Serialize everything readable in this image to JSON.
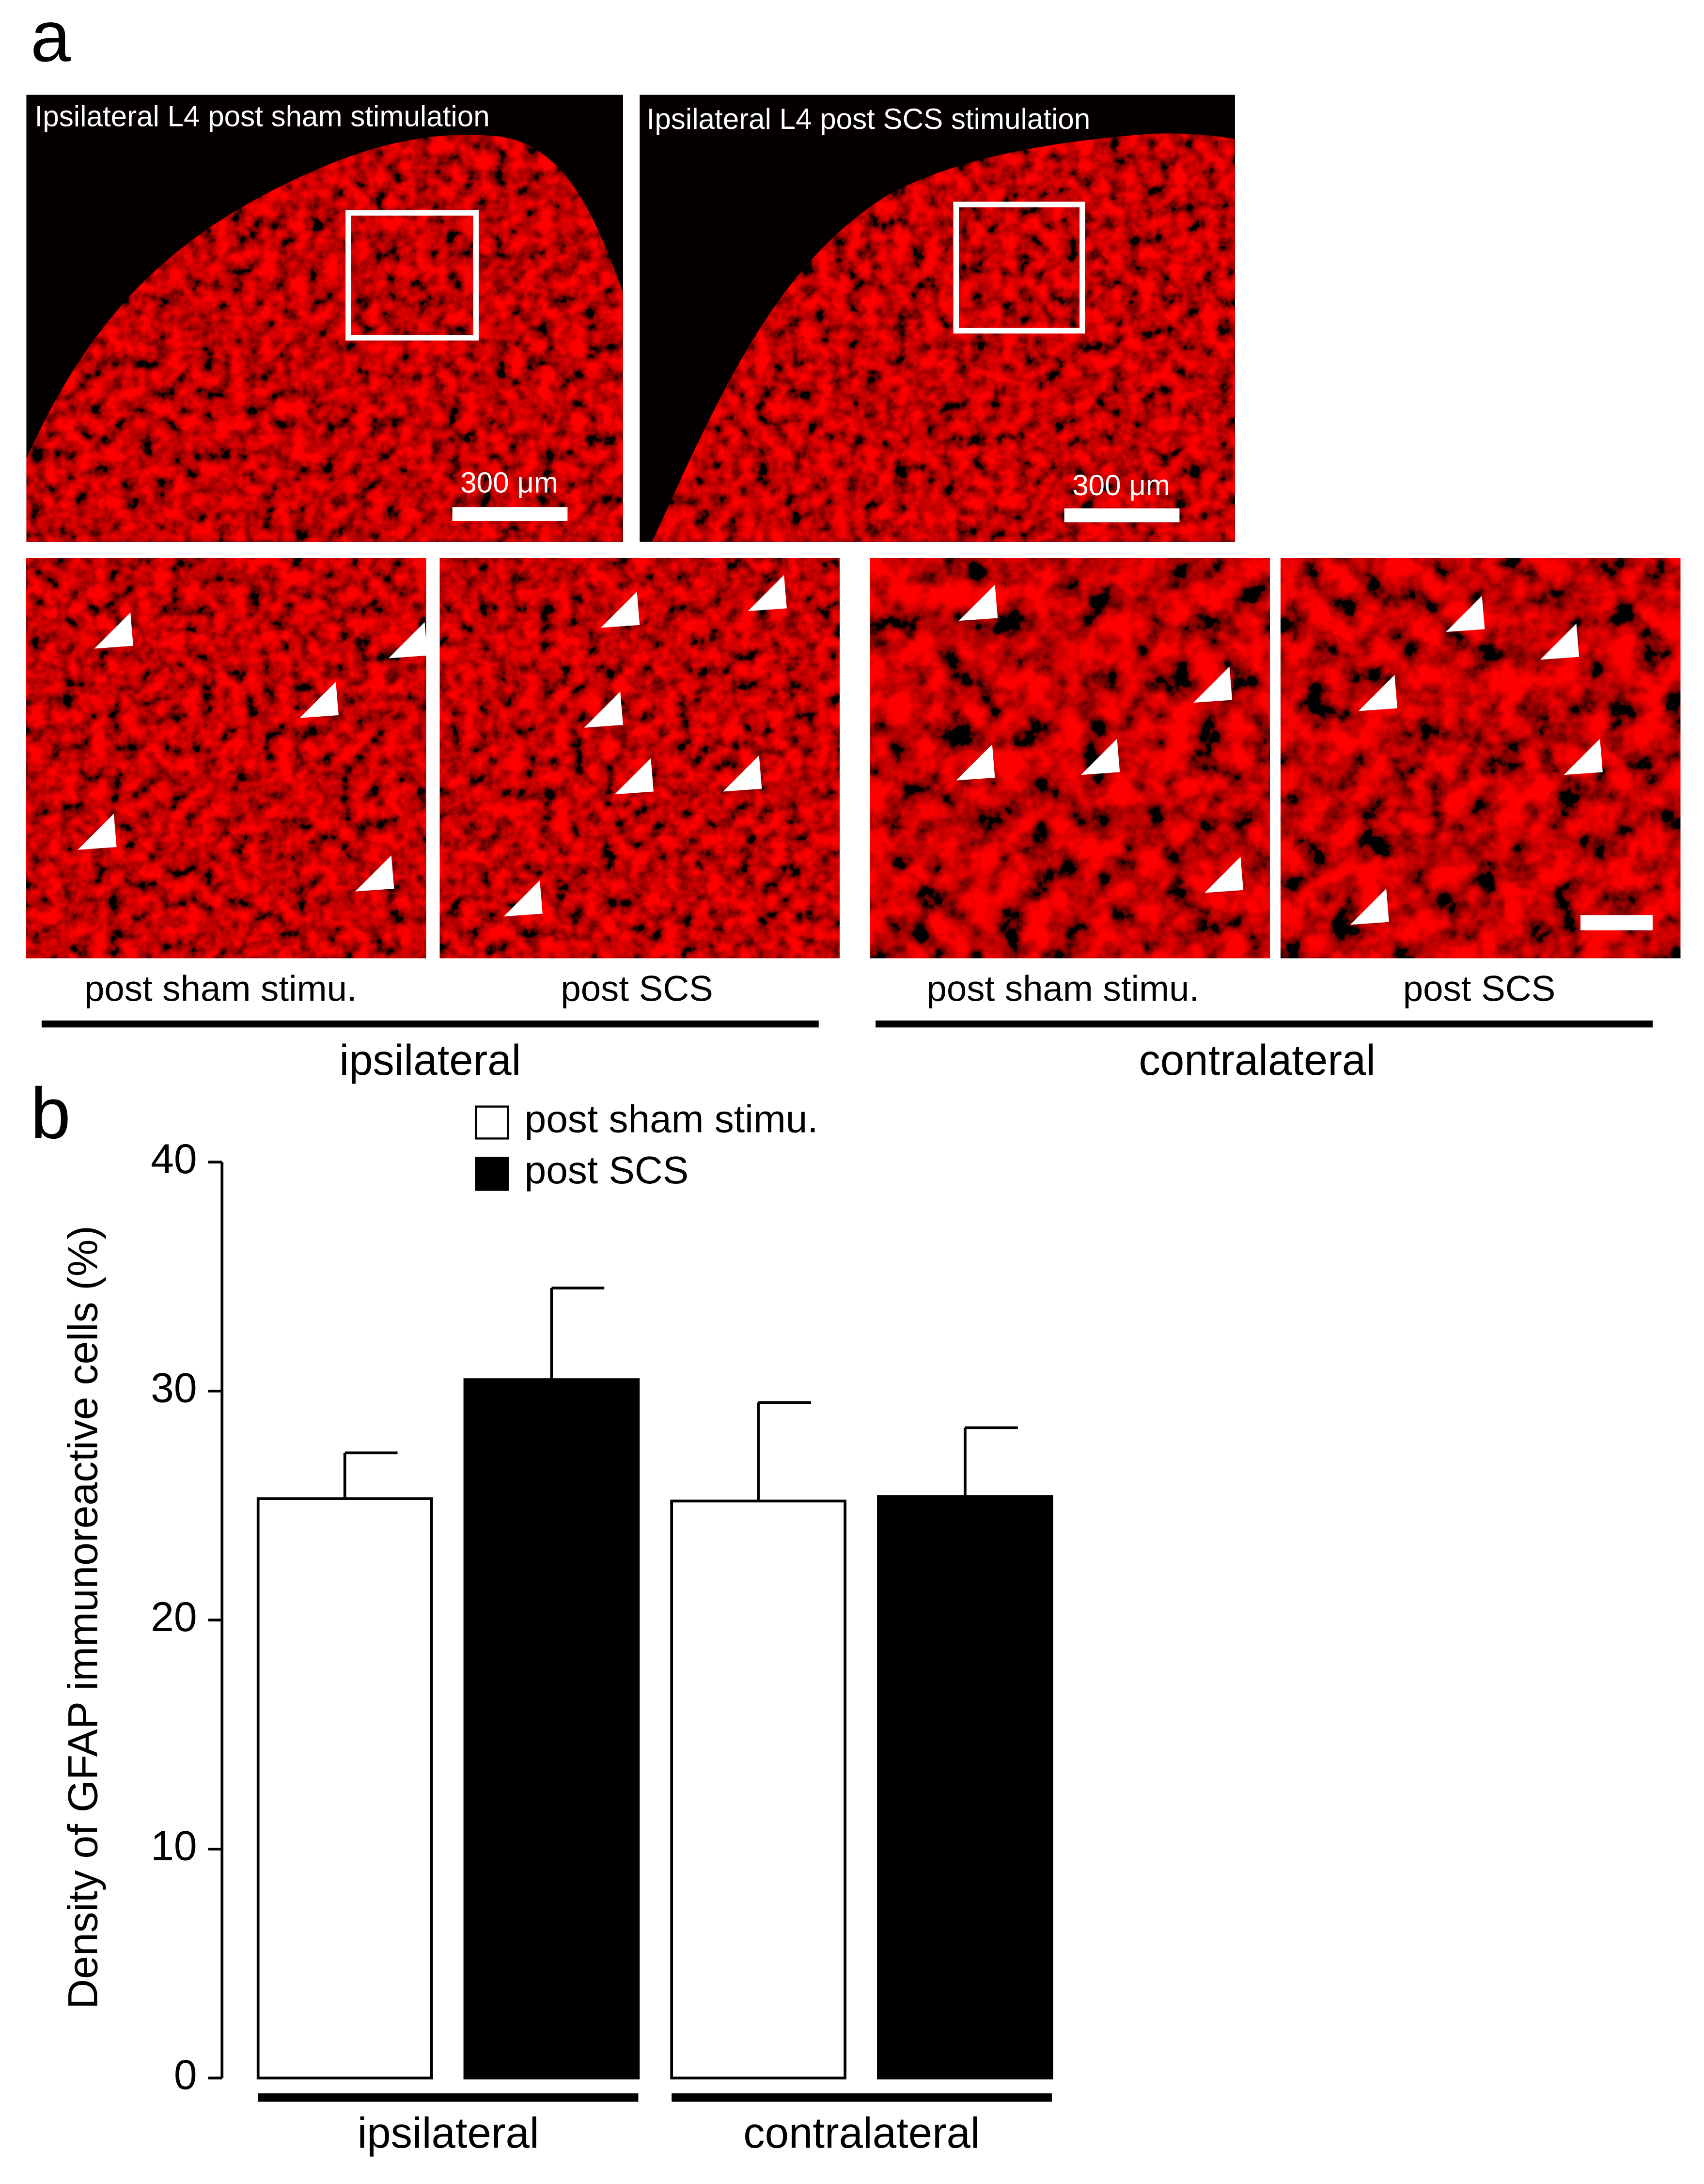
{
  "panel_labels": [
    "a",
    "b"
  ],
  "micrographs": {
    "overview_captions": [
      "Ipsilateral L4 post sham stimulation",
      "Ipsilateral L4 post SCS stimulation"
    ],
    "scale_bar_labels": [
      "300 μm",
      "300 μm"
    ],
    "detail_captions": [
      "post sham stimu.",
      "post SCS",
      "post sham stimu.",
      "post SCS"
    ],
    "group_labels": [
      "ipsilateral",
      "contralateral"
    ]
  },
  "chart_data": {
    "type": "bar",
    "y_label": "Density of GFAP immunoreactive cells (%)",
    "categories": [
      "ipsilateral",
      "contralateral"
    ],
    "series": [
      {
        "name": "post sham stimu.",
        "color": "#ffffff",
        "values": [
          25.3,
          25.2
        ],
        "errors": [
          2.0,
          4.3
        ]
      },
      {
        "name": "post SCS",
        "color": "#000000",
        "values": [
          30.5,
          25.4
        ],
        "errors": [
          4.0,
          3.0
        ]
      }
    ],
    "ylim": [
      0,
      40
    ],
    "yticks": [
      0,
      10,
      20,
      30,
      40
    ],
    "grid": false,
    "legend": "top"
  }
}
